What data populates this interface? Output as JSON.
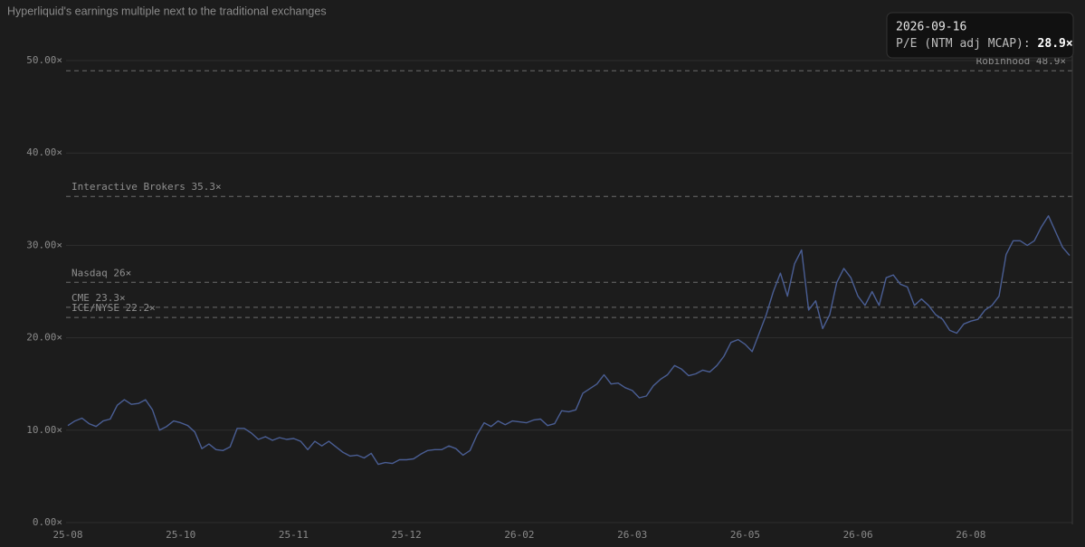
{
  "chart_data": {
    "type": "line",
    "title": "Hyperliquid's earnings multiple next to the traditional exchanges",
    "categories": [
      "25-08",
      null,
      null,
      null,
      null,
      null,
      null,
      null,
      null,
      null,
      null,
      null,
      null,
      null,
      null,
      null,
      "25-10",
      null,
      null,
      null,
      null,
      null,
      null,
      null,
      null,
      null,
      null,
      null,
      null,
      null,
      null,
      null,
      "25-11",
      null,
      null,
      null,
      null,
      null,
      null,
      null,
      null,
      null,
      null,
      null,
      null,
      null,
      null,
      null,
      "25-12",
      null,
      null,
      null,
      null,
      null,
      null,
      null,
      null,
      null,
      null,
      null,
      null,
      null,
      null,
      null,
      "26-02",
      null,
      null,
      null,
      null,
      null,
      null,
      null,
      null,
      null,
      null,
      null,
      null,
      null,
      null,
      null,
      "26-03",
      null,
      null,
      null,
      null,
      null,
      null,
      null,
      null,
      null,
      null,
      null,
      null,
      null,
      null,
      null,
      "26-05",
      null,
      null,
      null,
      null,
      null,
      null,
      null,
      null,
      null,
      null,
      null,
      null,
      null,
      null,
      null,
      "26-06",
      null,
      null,
      null,
      null,
      null,
      null,
      null,
      null,
      null,
      null,
      null,
      null,
      null,
      null,
      null,
      "26-08",
      null,
      null,
      null,
      null,
      null,
      null,
      null,
      null,
      null,
      null,
      null,
      null,
      null,
      null
    ],
    "series": [
      {
        "name": "P/E (NTM adj MCAP):",
        "color": "#4a5e94",
        "values": [
          10.5,
          11,
          11.3,
          10.7,
          10.4,
          11,
          11.2,
          12.7,
          13.3,
          12.8,
          12.9,
          13.3,
          12.2,
          10,
          10.4,
          11,
          10.8,
          10.5,
          9.8,
          8,
          8.5,
          7.9,
          7.8,
          8.2,
          10.2,
          10.2,
          9.7,
          9,
          9.3,
          8.9,
          9.2,
          9,
          9.1,
          8.8,
          7.9,
          8.8,
          8.3,
          8.8,
          8.2,
          7.6,
          7.2,
          7.3,
          7,
          7.5,
          6.3,
          6.5,
          6.4,
          6.8,
          6.8,
          6.9,
          7.4,
          7.8,
          7.9,
          7.9,
          8.3,
          8,
          7.3,
          7.8,
          9.5,
          10.8,
          10.4,
          11,
          10.6,
          11,
          10.9,
          10.8,
          11.1,
          11.2,
          10.5,
          10.7,
          12.1,
          12,
          12.2,
          14,
          14.5,
          15,
          16,
          15,
          15.1,
          14.6,
          14.3,
          13.5,
          13.7,
          14.8,
          15.5,
          16,
          17,
          16.6,
          15.9,
          16.1,
          16.5,
          16.3,
          17,
          18,
          19.5,
          19.8,
          19.3,
          18.5,
          20.5,
          22.5,
          25,
          27,
          24.5,
          28,
          29.5,
          23,
          24,
          21,
          22.5,
          26,
          27.5,
          26.5,
          24.5,
          23.5,
          25,
          23.5,
          26.5,
          26.8,
          25.8,
          25.5,
          23.5,
          24.2,
          23.5,
          22.5,
          22,
          20.8,
          20.5,
          21.5,
          21.8,
          22,
          23,
          23.5,
          24.5,
          29,
          30.5,
          30.5,
          30,
          30.5,
          32,
          33.2,
          31.5,
          29.8,
          28.9
        ]
      }
    ],
    "ylim": [
      0,
      50
    ],
    "yticks": [
      {
        "value": 0,
        "label": "0.00×"
      },
      {
        "value": 10,
        "label": "10.00×"
      },
      {
        "value": 20,
        "label": "20.00×"
      },
      {
        "value": 30,
        "label": "30.00×"
      },
      {
        "value": 40,
        "label": "40.00×"
      },
      {
        "value": 50,
        "label": "50.00×"
      }
    ],
    "grid": true,
    "reference_lines": [
      {
        "label": "Robinhood 48.9×",
        "value": 48.9
      },
      {
        "label": "Interactive Brokers 35.3×",
        "value": 35.3
      },
      {
        "label": "Nasdaq 26×",
        "value": 26
      },
      {
        "label": "CME 23.3×",
        "value": 23.3
      },
      {
        "label": "ICE/NYSE 22.2×",
        "value": 22.2
      }
    ],
    "tooltip": {
      "date": "2026-09-16",
      "value_label": "28.9×"
    }
  }
}
